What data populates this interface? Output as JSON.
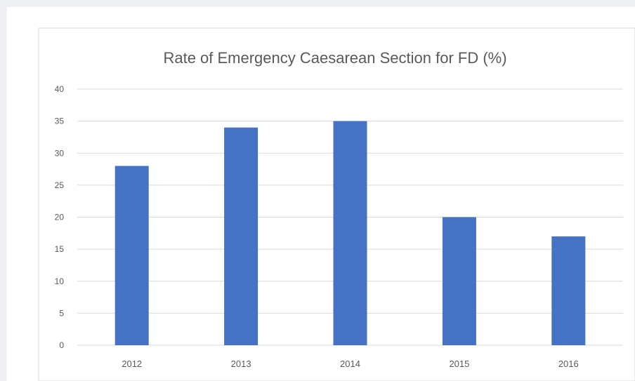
{
  "chart_data": {
    "type": "bar",
    "title": "Rate of Emergency Caesarean Section for FD (%)",
    "categories": [
      "2012",
      "2013",
      "2014",
      "2015",
      "2016"
    ],
    "values": [
      28,
      34,
      35,
      20,
      17
    ],
    "ylim": [
      0,
      40
    ],
    "yticks": [
      "0",
      "5",
      "10",
      "15",
      "20",
      "25",
      "30",
      "35",
      "40"
    ],
    "xlabel": "",
    "ylabel": "",
    "grid": true,
    "legend": "none",
    "bar_color": "#4472c4",
    "gridline_color": "#d9d9d9"
  }
}
